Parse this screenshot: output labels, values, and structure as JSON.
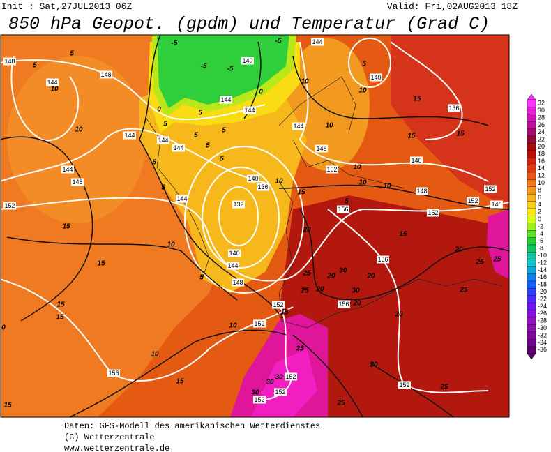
{
  "header": {
    "init": "Init : Sat,27JUL2013 06Z",
    "valid": "Valid: Fri,02AUG2013 18Z",
    "title": "850 hPa Geopot. (gpdm) und Temperatur (Grad C)"
  },
  "legend": {
    "labels": [
      32,
      30,
      28,
      26,
      24,
      22,
      20,
      18,
      16,
      14,
      12,
      10,
      8,
      6,
      4,
      2,
      0,
      -2,
      -4,
      -6,
      -8,
      -10,
      -12,
      -14,
      -16,
      -18,
      -20,
      -22,
      -24,
      -26,
      -28,
      -30,
      -32,
      -34,
      -36
    ]
  },
  "map": {
    "geopotential_labels": [
      148,
      148,
      144,
      144,
      140,
      140,
      136,
      144,
      144,
      144,
      144,
      144,
      144,
      144,
      148,
      152,
      144,
      140,
      136,
      132,
      148,
      152,
      140,
      148,
      152,
      156,
      152,
      152,
      148,
      156,
      140,
      144,
      148,
      152,
      152,
      156,
      156,
      152,
      152,
      152,
      152
    ],
    "temperature_labels": [
      -5,
      -5,
      -5,
      -5,
      0,
      0,
      5,
      5,
      5,
      10,
      10,
      10,
      15,
      10,
      5,
      5,
      5,
      5,
      5,
      5,
      5,
      5,
      10,
      15,
      15,
      10,
      10,
      10,
      15,
      10,
      5,
      15,
      10,
      15,
      15,
      20,
      20,
      25,
      25,
      25,
      30,
      20,
      20,
      30,
      20,
      25,
      25,
      5,
      20,
      15,
      20,
      15,
      15,
      0,
      10,
      10,
      25,
      20,
      15,
      30,
      30,
      30,
      25,
      25,
      15
    ]
  },
  "footer": {
    "lines": [
      "Daten: GFS-Modell des amerikanischen Wetterdienstes",
      "(C) Wetterzentrale",
      "www.wetterzentrale.de"
    ]
  }
}
